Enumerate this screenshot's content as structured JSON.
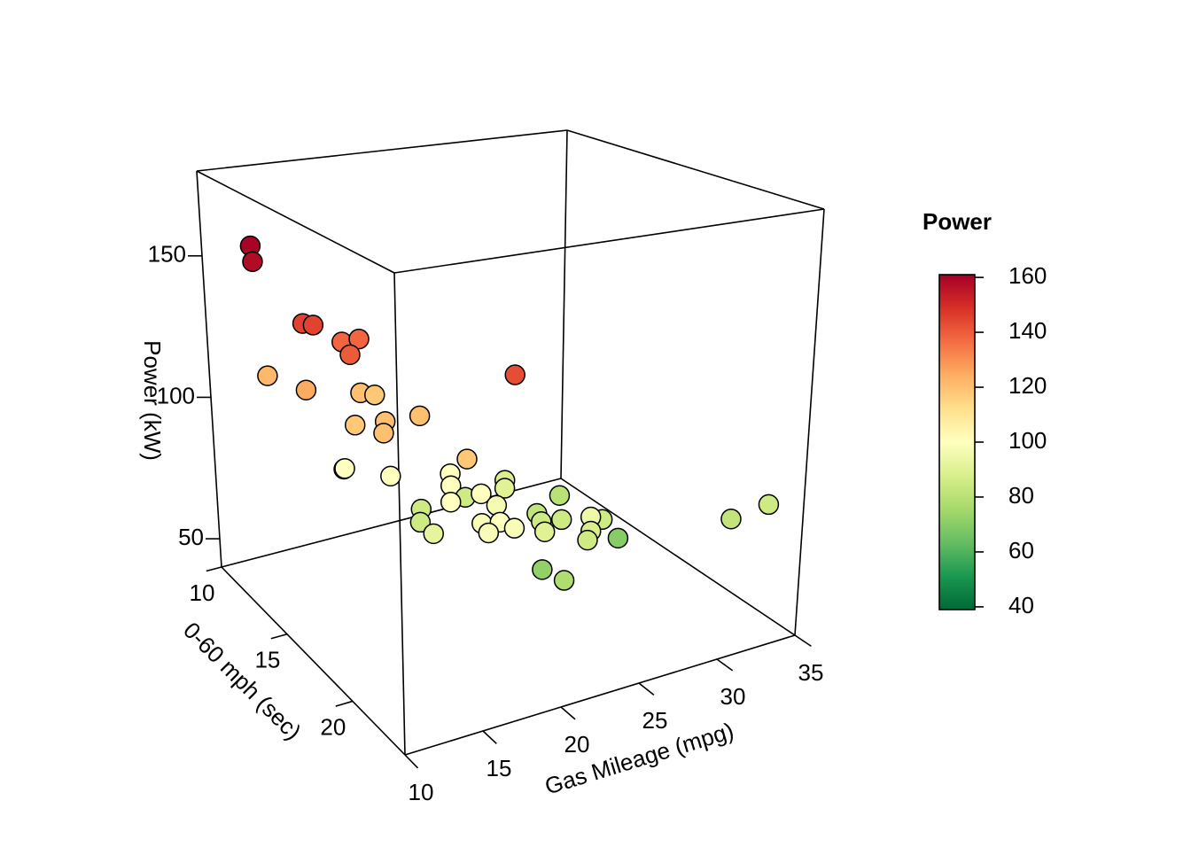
{
  "chart_data": {
    "type": "scatter3d",
    "x_label": "Gas Mileage (mpg)",
    "y_label": "0-60 mph (sec)",
    "z_label": "Power (kW)",
    "colorbar_title": "Power",
    "xlim": [
      10,
      35
    ],
    "xticks": [
      10,
      15,
      20,
      25,
      30,
      35
    ],
    "ylim": [
      10,
      24
    ],
    "yticks": [
      10,
      15,
      20
    ],
    "zlim": [
      40,
      180
    ],
    "zticks": [
      50,
      100,
      150
    ],
    "clim": [
      39,
      161
    ],
    "cticks": [
      40,
      60,
      80,
      100,
      120,
      140,
      160
    ],
    "colormap": [
      "#006837",
      "#1a9850",
      "#66bd63",
      "#a6d96a",
      "#d9ef8b",
      "#ffffbf",
      "#fee08b",
      "#fdae61",
      "#f46d43",
      "#d73027",
      "#a50026"
    ],
    "x": [
      11.0,
      10.2,
      10.8,
      11.2,
      13.0,
      14.1,
      11.9,
      10.2,
      10.5,
      14.2,
      15.2,
      17.3,
      15.4,
      12.0,
      13.3,
      12.4,
      11.8,
      12.3,
      14.1,
      17.2,
      15.0,
      22.0,
      21.0,
      16.4,
      19.5,
      25.3,
      17.3,
      15.3,
      16.5,
      17.9,
      15.6,
      22.5,
      21.5,
      22.6,
      24.5,
      21.9,
      22.5,
      15.8,
      16.3,
      19.9,
      14.1,
      22.4,
      27.2,
      31.0,
      15.5,
      21.1,
      33.0,
      20.2,
      17.0
    ],
    "y": [
      12.5,
      13.5,
      16.3,
      16.6,
      16.6,
      16.6,
      18.4,
      14.2,
      16.7,
      16.5,
      16.4,
      23.7,
      19.3,
      18.5,
      19.2,
      20.1,
      17.8,
      17.3,
      18.6,
      19.4,
      23.0,
      18.1,
      19.1,
      20.3,
      18.0,
      18.4,
      21.4,
      21.5,
      18.1,
      21.8,
      19.0,
      19.7,
      21.0,
      21.2,
      21.9,
      23.8,
      23.2,
      23.1,
      23.8,
      22.9,
      21.6,
      23.1,
      20.3,
      23.5,
      23.9,
      21.5,
      23.8,
      23.9,
      24.0
    ],
    "z": [
      160,
      158,
      145,
      145,
      138,
      138,
      140,
      122,
      125,
      120,
      118,
      143,
      120,
      118,
      120,
      120,
      102,
      100,
      100,
      100,
      118,
      88,
      90,
      100,
      85,
      80,
      100,
      100,
      85,
      97,
      85,
      82,
      85,
      85,
      85,
      95,
      88,
      98,
      100,
      90,
      92,
      85,
      70,
      82,
      98,
      72,
      85,
      78,
      98
    ]
  }
}
